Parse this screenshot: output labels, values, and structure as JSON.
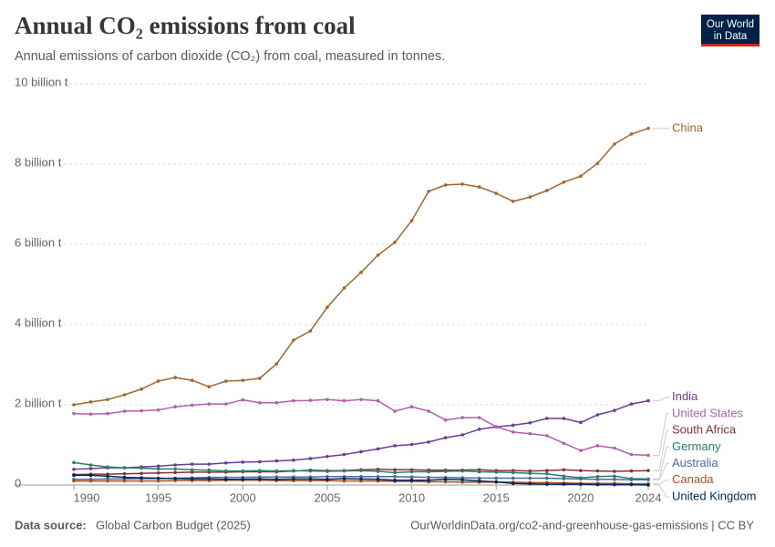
{
  "chart_data": {
    "type": "line",
    "title": "Annual CO₂ emissions from coal",
    "subtitle": "Annual emissions of carbon dioxide (CO₂) from coal, measured in tonnes.",
    "logo": [
      "Our World",
      "in Data"
    ],
    "source_label": "Data source:",
    "source": "Global Carbon Budget (2025)",
    "url": "OurWorldinData.org/co2-and-greenhouse-gas-emissions | CC BY",
    "x": [
      1990,
      1991,
      1992,
      1993,
      1994,
      1995,
      1996,
      1997,
      1998,
      1999,
      2000,
      2001,
      2002,
      2003,
      2004,
      2005,
      2006,
      2007,
      2008,
      2009,
      2010,
      2011,
      2012,
      2013,
      2014,
      2015,
      2016,
      2017,
      2018,
      2019,
      2020,
      2021,
      2022,
      2023,
      2024
    ],
    "xlim": [
      1990,
      2024
    ],
    "xticks": [
      1990,
      1995,
      2000,
      2005,
      2010,
      2015,
      2020,
      2024
    ],
    "ylim": [
      0,
      10
    ],
    "yticks": [
      0,
      {
        "value": 2,
        "label": "2 billion t"
      },
      {
        "value": 4,
        "label": "4 billion t"
      },
      {
        "value": 6,
        "label": "6 billion t"
      },
      {
        "value": 8,
        "label": "8 billion t"
      },
      {
        "value": 10,
        "label": "10 billion t"
      }
    ],
    "grid": true,
    "series": [
      {
        "name": "China",
        "color": "#a2662f",
        "values": [
          2.0,
          2.07,
          2.13,
          2.25,
          2.39,
          2.59,
          2.68,
          2.61,
          2.45,
          2.59,
          2.61,
          2.66,
          3.02,
          3.61,
          3.84,
          4.43,
          4.91,
          5.3,
          5.73,
          6.05,
          6.59,
          7.32,
          7.48,
          7.5,
          7.43,
          7.27,
          7.07,
          7.18,
          7.34,
          7.55,
          7.7,
          8.02,
          8.5,
          8.75,
          8.89
        ]
      },
      {
        "name": "India",
        "color": "#6a3d9a",
        "values": [
          0.39,
          0.41,
          0.43,
          0.43,
          0.45,
          0.47,
          0.5,
          0.52,
          0.52,
          0.55,
          0.57,
          0.58,
          0.6,
          0.62,
          0.66,
          0.71,
          0.76,
          0.83,
          0.9,
          0.98,
          1.01,
          1.07,
          1.18,
          1.25,
          1.39,
          1.45,
          1.49,
          1.55,
          1.66,
          1.66,
          1.56,
          1.75,
          1.86,
          2.02,
          2.1
        ]
      },
      {
        "name": "United States",
        "color": "#b35fae",
        "values": [
          1.78,
          1.77,
          1.78,
          1.84,
          1.85,
          1.87,
          1.95,
          1.99,
          2.02,
          2.02,
          2.12,
          2.05,
          2.05,
          2.1,
          2.11,
          2.13,
          2.1,
          2.13,
          2.1,
          1.84,
          1.95,
          1.84,
          1.62,
          1.68,
          1.68,
          1.45,
          1.32,
          1.28,
          1.23,
          1.04,
          0.86,
          0.98,
          0.92,
          0.76,
          0.74
        ]
      },
      {
        "name": "South Africa",
        "color": "#883039",
        "values": [
          0.26,
          0.27,
          0.27,
          0.28,
          0.29,
          0.3,
          0.31,
          0.32,
          0.32,
          0.32,
          0.33,
          0.33,
          0.33,
          0.35,
          0.37,
          0.36,
          0.36,
          0.38,
          0.39,
          0.38,
          0.38,
          0.37,
          0.37,
          0.37,
          0.38,
          0.36,
          0.36,
          0.35,
          0.36,
          0.38,
          0.36,
          0.35,
          0.34,
          0.35,
          0.36
        ]
      },
      {
        "name": "Germany",
        "color": "#28806d",
        "values": [
          0.56,
          0.5,
          0.45,
          0.43,
          0.42,
          0.4,
          0.4,
          0.38,
          0.37,
          0.35,
          0.35,
          0.36,
          0.35,
          0.36,
          0.35,
          0.34,
          0.35,
          0.36,
          0.34,
          0.31,
          0.33,
          0.33,
          0.34,
          0.35,
          0.33,
          0.32,
          0.31,
          0.29,
          0.28,
          0.22,
          0.18,
          0.21,
          0.22,
          0.16,
          0.15
        ]
      },
      {
        "name": "Australia",
        "color": "#4c6a9c",
        "values": [
          0.14,
          0.14,
          0.15,
          0.15,
          0.16,
          0.16,
          0.17,
          0.18,
          0.19,
          0.19,
          0.19,
          0.2,
          0.2,
          0.2,
          0.2,
          0.21,
          0.21,
          0.21,
          0.21,
          0.21,
          0.2,
          0.19,
          0.19,
          0.18,
          0.17,
          0.17,
          0.17,
          0.17,
          0.17,
          0.16,
          0.15,
          0.14,
          0.14,
          0.13,
          0.13
        ]
      },
      {
        "name": "Canada",
        "color": "#b14f22",
        "values": [
          0.1,
          0.1,
          0.1,
          0.1,
          0.1,
          0.1,
          0.11,
          0.11,
          0.11,
          0.12,
          0.12,
          0.12,
          0.11,
          0.11,
          0.11,
          0.11,
          0.1,
          0.1,
          0.1,
          0.09,
          0.09,
          0.08,
          0.08,
          0.07,
          0.07,
          0.07,
          0.07,
          0.06,
          0.06,
          0.05,
          0.04,
          0.04,
          0.04,
          0.03,
          0.03
        ]
      },
      {
        "name": "United Kingdom",
        "color": "#00295b",
        "values": [
          0.24,
          0.24,
          0.22,
          0.19,
          0.18,
          0.17,
          0.16,
          0.15,
          0.15,
          0.14,
          0.14,
          0.15,
          0.14,
          0.15,
          0.15,
          0.14,
          0.16,
          0.15,
          0.14,
          0.12,
          0.12,
          0.12,
          0.14,
          0.13,
          0.1,
          0.08,
          0.04,
          0.03,
          0.02,
          0.02,
          0.02,
          0.01,
          0.01,
          0.01,
          0.0
        ]
      }
    ]
  }
}
